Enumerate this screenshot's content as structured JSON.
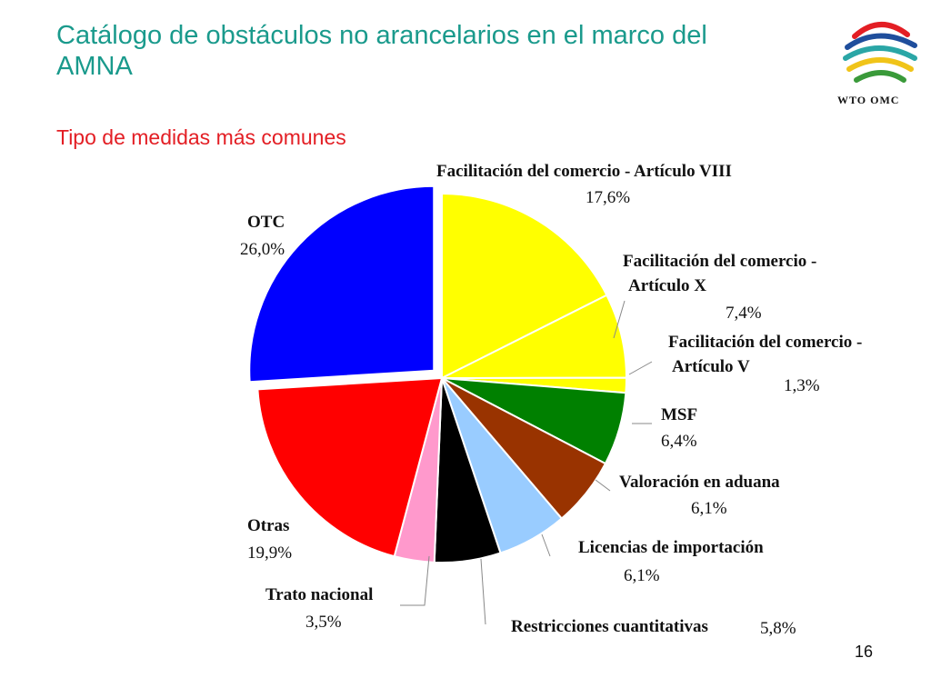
{
  "slide": {
    "title": "Catálogo de obstáculos no arancelarios en el marco del AMNA",
    "subtitle": "Tipo de medidas más comunes",
    "logo_text": "WTO OMC",
    "page_number": "16"
  },
  "chart_data": {
    "type": "pie",
    "title": "Tipo de medidas más comunes",
    "slices": [
      {
        "label_lines": [
          "Facilitación del comercio - Artículo VIII"
        ],
        "value_text": "17,6%",
        "value": 17.6,
        "color": "#ffff00"
      },
      {
        "label_lines": [
          "Facilitación del comercio -",
          "Artículo X"
        ],
        "value_text": "7,4%",
        "value": 7.4,
        "color": "#ffff00"
      },
      {
        "label_lines": [
          "Facilitación del comercio -",
          "Artículo V"
        ],
        "value_text": "1,3%",
        "value": 1.3,
        "color": "#ffff00"
      },
      {
        "label_lines": [
          "MSF"
        ],
        "value_text": "6,4%",
        "value": 6.4,
        "color": "#008000"
      },
      {
        "label_lines": [
          "Valoración en aduana"
        ],
        "value_text": "6,1%",
        "value": 6.1,
        "color": "#993300"
      },
      {
        "label_lines": [
          "Licencias de importación"
        ],
        "value_text": "6,1%",
        "value": 6.1,
        "color": "#99ccff"
      },
      {
        "label_lines": [
          "Restricciones cuantitativas"
        ],
        "value_text": "5,8%",
        "value": 5.8,
        "color": "#000000"
      },
      {
        "label_lines": [
          "Trato nacional"
        ],
        "value_text": "3,5%",
        "value": 3.5,
        "color": "#ff99cc"
      },
      {
        "label_lines": [
          "Otras"
        ],
        "value_text": "19,9%",
        "value": 19.9,
        "color": "#ff0000"
      },
      {
        "label_lines": [
          "OTC"
        ],
        "value_text": "26,0%",
        "value": 26.0,
        "color": "#0000ff"
      }
    ],
    "start_angle_deg": 0,
    "direction": "clockwise",
    "exploded_slice": "OTC"
  }
}
